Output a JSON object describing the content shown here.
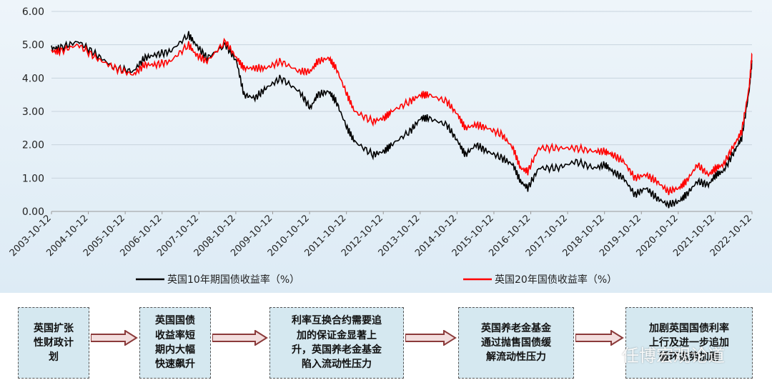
{
  "chart_data": {
    "type": "line",
    "title": "",
    "xlabel": "",
    "ylabel": "",
    "ylim": [
      0,
      6
    ],
    "yticks": [
      "0.00",
      "1.00",
      "2.00",
      "3.00",
      "4.00",
      "5.00",
      "6.00"
    ],
    "grid": true,
    "legend_position": "bottom",
    "x_tick_labels": [
      "2003-10-12",
      "2004-10-12",
      "2005-10-12",
      "2006-10-12",
      "2007-10-12",
      "2008-10-12",
      "2009-10-12",
      "2010-10-12",
      "2011-10-12",
      "2012-10-12",
      "2013-10-12",
      "2014-10-12",
      "2015-10-12",
      "2016-10-12",
      "2017-10-12",
      "2018-10-12",
      "2019-10-12",
      "2020-10-12",
      "2021-10-12",
      "2022-10-12"
    ],
    "x": [
      2003.78,
      2004.0,
      2004.5,
      2005.0,
      2005.5,
      2006.0,
      2006.3,
      2006.6,
      2007.0,
      2007.5,
      2007.7,
      2008.0,
      2008.5,
      2008.8,
      2009.0,
      2009.3,
      2009.6,
      2010.0,
      2010.5,
      2010.8,
      2011.0,
      2011.3,
      2011.5,
      2011.8,
      2012.0,
      2012.5,
      2012.8,
      2013.0,
      2013.5,
      2013.8,
      2014.0,
      2014.5,
      2014.8,
      2015.0,
      2015.3,
      2015.6,
      2016.0,
      2016.3,
      2016.5,
      2016.7,
      2017.0,
      2017.5,
      2018.0,
      2018.5,
      2018.8,
      2019.0,
      2019.3,
      2019.6,
      2019.9,
      2020.2,
      2020.5,
      2020.8,
      2021.0,
      2021.3,
      2021.6,
      2021.8,
      2022.0,
      2022.3,
      2022.5,
      2022.7,
      2022.78
    ],
    "series": [
      {
        "name": "英国10年期国债收益率（%）",
        "color": "#000000",
        "values": [
          4.9,
          4.9,
          5.1,
          4.7,
          4.3,
          4.2,
          4.6,
          4.7,
          4.8,
          5.3,
          5.0,
          4.6,
          5.0,
          4.5,
          3.5,
          3.4,
          3.7,
          4.0,
          3.6,
          3.1,
          3.5,
          3.6,
          3.3,
          2.5,
          2.1,
          1.7,
          1.8,
          2.0,
          2.4,
          2.8,
          2.8,
          2.6,
          2.1,
          1.7,
          2.0,
          1.8,
          1.6,
          1.4,
          0.9,
          0.7,
          1.3,
          1.3,
          1.5,
          1.3,
          1.4,
          1.2,
          1.0,
          0.5,
          0.7,
          0.4,
          0.2,
          0.3,
          0.5,
          0.9,
          0.8,
          1.1,
          1.2,
          1.8,
          2.2,
          3.6,
          4.5
        ]
      },
      {
        "name": "英国20年国债收益率（%）",
        "color": "#ff0000",
        "values": [
          4.8,
          4.8,
          5.0,
          4.6,
          4.3,
          4.1,
          4.4,
          4.4,
          4.5,
          5.0,
          4.7,
          4.5,
          5.1,
          4.6,
          4.3,
          4.3,
          4.3,
          4.5,
          4.2,
          4.2,
          4.5,
          4.6,
          4.3,
          3.5,
          3.0,
          2.7,
          2.8,
          3.0,
          3.3,
          3.5,
          3.5,
          3.3,
          2.9,
          2.5,
          2.6,
          2.5,
          2.3,
          1.9,
          1.3,
          1.2,
          1.9,
          1.9,
          1.9,
          1.8,
          1.8,
          1.7,
          1.5,
          1.0,
          1.1,
          0.9,
          0.6,
          0.7,
          0.9,
          1.4,
          1.1,
          1.3,
          1.4,
          2.0,
          2.4,
          3.7,
          4.7
        ]
      }
    ]
  },
  "legend": {
    "series1_label": "英国10年期国债收益率（%）",
    "series2_label": "英国20年国债收益率（%）"
  },
  "flow": {
    "box1": [
      "英国扩张",
      "性财政计",
      "划"
    ],
    "box2": [
      "英国国债",
      "收益率短",
      "期内大幅",
      "快速飙升"
    ],
    "box3": [
      "利率互换合约需要追",
      "加的保证金显著上",
      "升，英国养老金基金",
      "陷入流动性压力"
    ],
    "box4": [
      "英国养老金基金",
      "通过抛售国债缓",
      "解流动性压力"
    ],
    "box5": [
      "加剧英国国债利率",
      "上行及进一步追加",
      "循环态势加剧"
    ]
  },
  "watermark": {
    "text": "任博宏观论道"
  }
}
